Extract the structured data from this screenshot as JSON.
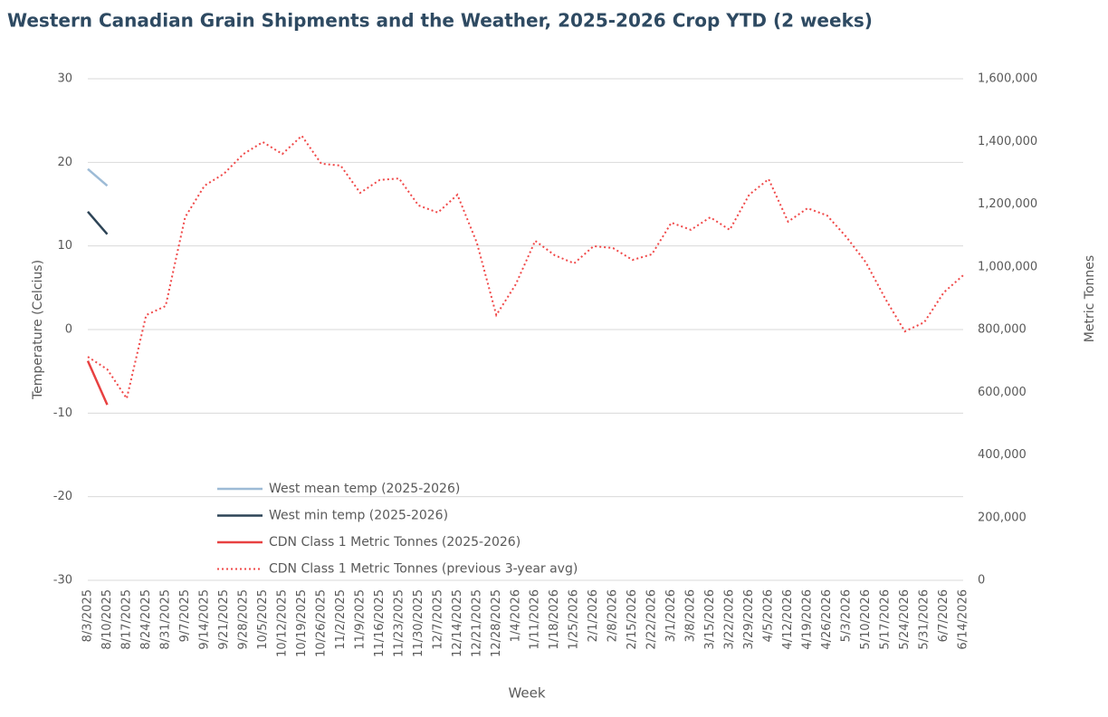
{
  "chart_data": {
    "type": "line",
    "title": "Western Canadian Grain Shipments and the Weather, 2025-2026 Crop YTD (2 weeks)",
    "x_label": "Week",
    "y_label": "Temperature (Celcius)",
    "y2_label": "Metric Tonnes",
    "categories": [
      "8/3/2025",
      "8/10/2025",
      "8/17/2025",
      "8/24/2025",
      "8/31/2025",
      "9/7/2025",
      "9/14/2025",
      "9/21/2025",
      "9/28/2025",
      "10/5/2025",
      "10/12/2025",
      "10/19/2025",
      "10/26/2025",
      "11/2/2025",
      "11/9/2025",
      "11/16/2025",
      "11/23/2025",
      "11/30/2025",
      "12/7/2025",
      "12/14/2025",
      "12/21/2025",
      "12/28/2025",
      "1/4/2026",
      "1/11/2026",
      "1/18/2026",
      "1/25/2026",
      "2/1/2026",
      "2/8/2026",
      "2/15/2026",
      "2/22/2026",
      "3/1/2026",
      "3/8/2026",
      "3/15/2026",
      "3/22/2026",
      "3/29/2026",
      "4/5/2026",
      "4/12/2026",
      "4/19/2026",
      "4/26/2026",
      "5/3/2026",
      "5/10/2026",
      "5/17/2026",
      "5/24/2026",
      "5/31/2026",
      "6/7/2026",
      "6/14/2026"
    ],
    "ylim": [
      -30,
      30
    ],
    "yticks": [
      -30,
      -20,
      -10,
      0,
      10,
      20,
      30
    ],
    "y2lim": [
      0,
      1600000
    ],
    "y2ticks": [
      0,
      {
        "value": 200000,
        "label": "200,000"
      },
      {
        "value": 400000,
        "label": "400,000"
      },
      {
        "value": 600000,
        "label": "600,000"
      },
      {
        "value": 800000,
        "label": "800,000"
      },
      {
        "value": 1000000,
        "label": "1,000,000"
      },
      {
        "value": 1200000,
        "label": "1,200,000"
      },
      {
        "value": 1400000,
        "label": "1,400,000"
      },
      {
        "value": 1600000,
        "label": "1,600,000"
      }
    ],
    "grid": true,
    "legend": "lower left",
    "series": [
      {
        "name": "West mean temp (2025-2026)",
        "color": "#9dbbd6",
        "style": "solid",
        "values": [
          19.2,
          17.2,
          null,
          null,
          null,
          null,
          null,
          null,
          null,
          null,
          null,
          null,
          null,
          null,
          null,
          null,
          null,
          null,
          null,
          null,
          null,
          null,
          null,
          null,
          null,
          null,
          null,
          null,
          null,
          null,
          null,
          null,
          null,
          null,
          null,
          null,
          null,
          null,
          null,
          null,
          null,
          null,
          null,
          null,
          null,
          null
        ]
      },
      {
        "name": "West min temp (2025-2026)",
        "color": "#2d4456",
        "style": "solid",
        "values": [
          14.1,
          11.4,
          null,
          null,
          null,
          null,
          null,
          null,
          null,
          null,
          null,
          null,
          null,
          null,
          null,
          null,
          null,
          null,
          null,
          null,
          null,
          null,
          null,
          null,
          null,
          null,
          null,
          null,
          null,
          null,
          null,
          null,
          null,
          null,
          null,
          null,
          null,
          null,
          null,
          null,
          null,
          null,
          null,
          null,
          null,
          null
        ]
      },
      {
        "name": "CDN Class 1 Metric Tonnes (2025-2026)",
        "color": "#e84141",
        "style": "solid",
        "axis": "y2",
        "values": [
          700000,
          560000,
          null,
          null,
          null,
          null,
          null,
          null,
          null,
          null,
          null,
          null,
          null,
          null,
          null,
          null,
          null,
          null,
          null,
          null,
          null,
          null,
          null,
          null,
          null,
          null,
          null,
          null,
          null,
          null,
          null,
          null,
          null,
          null,
          null,
          null,
          null,
          null,
          null,
          null,
          null,
          null,
          null,
          null,
          null,
          null
        ]
      },
      {
        "name": "CDN Class 1 Metric Tonnes (previous 3-year avg)",
        "color": "#f04848",
        "style": "dotted",
        "axis": "y2",
        "values": [
          713000,
          673000,
          580000,
          846000,
          875000,
          1158000,
          1259000,
          1297000,
          1360000,
          1398000,
          1360000,
          1418000,
          1329000,
          1323000,
          1236000,
          1277000,
          1282000,
          1196000,
          1173000,
          1230000,
          1077000,
          846000,
          944000,
          1083000,
          1037000,
          1011000,
          1066000,
          1060000,
          1022000,
          1040000,
          1141000,
          1118000,
          1158000,
          1118000,
          1230000,
          1280000,
          1144000,
          1187000,
          1164000,
          1095000,
          1014000,
          898000,
          794000,
          823000,
          918000,
          973000
        ]
      }
    ]
  }
}
